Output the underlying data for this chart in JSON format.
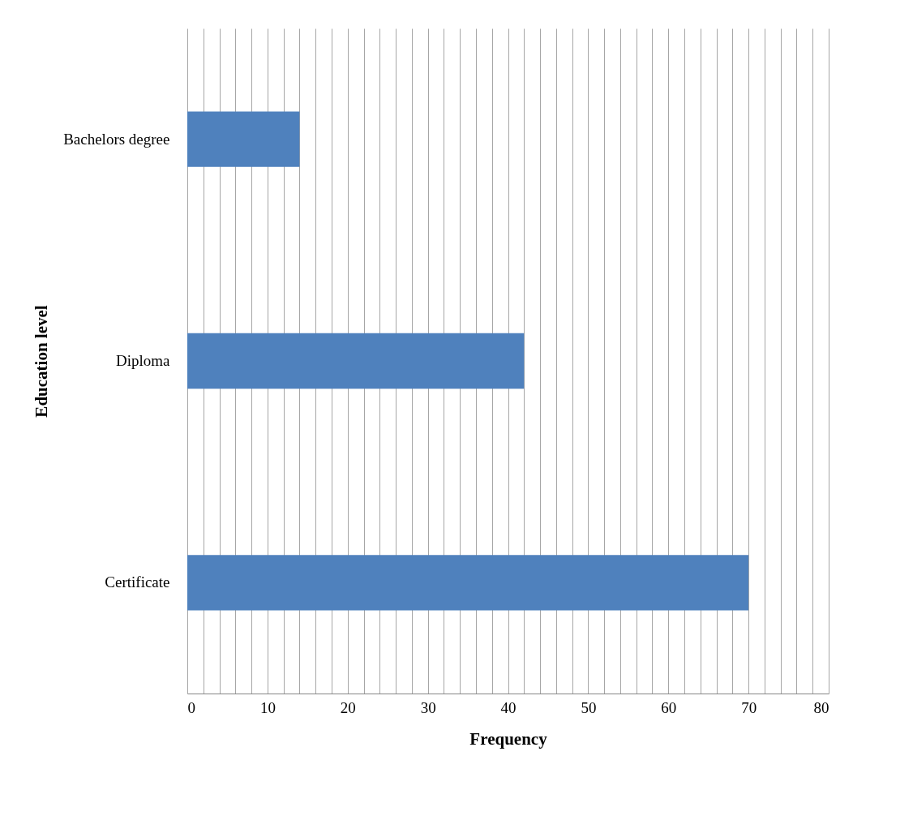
{
  "chart_data": {
    "type": "bar",
    "orientation": "horizontal",
    "xlabel": "Frequency",
    "ylabel": "Education level",
    "categories": [
      "Bachelors degree",
      "Diploma",
      "Certificate"
    ],
    "values": [
      14,
      42,
      70
    ],
    "color": "#4f81bd",
    "xlim": [
      0,
      80
    ],
    "xticks": [
      0,
      {
        "value": 2,
        "label": null
      },
      {
        "value": 4,
        "label": null
      },
      {
        "value": 6,
        "label": null
      },
      {
        "value": 8,
        "label": null
      },
      10,
      {
        "value": 12,
        "label": null
      },
      {
        "value": 14,
        "label": null
      },
      {
        "value": 16,
        "label": null
      },
      {
        "value": 18,
        "label": null
      },
      20,
      {
        "value": 22,
        "label": null
      },
      {
        "value": 24,
        "label": null
      },
      {
        "value": 26,
        "label": null
      },
      {
        "value": 28,
        "label": null
      },
      30,
      {
        "value": 32,
        "label": null
      },
      {
        "value": 34,
        "label": null
      },
      {
        "value": 36,
        "label": null
      },
      {
        "value": 38,
        "label": null
      },
      40,
      {
        "value": 42,
        "label": null
      },
      {
        "value": 44,
        "label": null
      },
      {
        "value": 46,
        "label": null
      },
      {
        "value": 48,
        "label": null
      },
      50,
      {
        "value": 52,
        "label": null
      },
      {
        "value": 54,
        "label": null
      },
      {
        "value": 56,
        "label": null
      },
      {
        "value": 58,
        "label": null
      },
      60,
      {
        "value": 62,
        "label": null
      },
      {
        "value": 64,
        "label": null
      },
      {
        "value": 66,
        "label": null
      },
      {
        "value": 68,
        "label": null
      },
      70,
      {
        "value": 72,
        "label": null
      },
      {
        "value": 74,
        "label": null
      },
      {
        "value": 76,
        "label": null
      },
      {
        "value": 78,
        "label": null
      },
      80
    ],
    "grid": "x"
  }
}
